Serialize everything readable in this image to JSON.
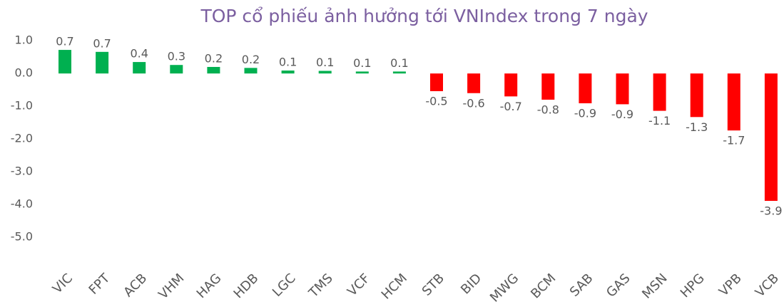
{
  "chart_data": {
    "type": "bar",
    "title": "TOP cổ phiếu ảnh hưởng tới VNIndex trong 7 ngày",
    "categories": [
      "VIC",
      "FPT",
      "ACB",
      "VHM",
      "HAG",
      "HDB",
      "LGC",
      "TMS",
      "VCF",
      "HCM",
      "STB",
      "BID",
      "MWG",
      "BCM",
      "SAB",
      "GAS",
      "MSN",
      "HPG",
      "VPB",
      "VCB"
    ],
    "values": [
      0.72,
      0.66,
      0.35,
      0.26,
      0.2,
      0.17,
      0.09,
      0.08,
      0.06,
      0.06,
      -0.54,
      -0.6,
      -0.7,
      -0.8,
      -0.91,
      -0.94,
      -1.14,
      -1.33,
      -1.74,
      -3.89
    ],
    "value_labels": [
      "0.7",
      "0.7",
      "0.4",
      "0.3",
      "0.2",
      "0.2",
      "0.1",
      "0.1",
      "0.1",
      "0.1",
      "-0.5",
      "-0.6",
      "-0.7",
      "-0.8",
      "-0.9",
      "-0.9",
      "-1.1",
      "-1.3",
      "-1.7",
      "-3.9"
    ],
    "positive_color": "#00b050",
    "negative_color": "#ff0000",
    "ylim": [
      -6,
      1.2
    ],
    "yticks": [
      {
        "value": 1,
        "label": "1.0"
      },
      {
        "value": 0,
        "label": "0.0"
      },
      {
        "value": -1,
        "label": "-1.0"
      },
      {
        "value": -2,
        "label": "-2.0"
      },
      {
        "value": -3,
        "label": "-3.0"
      },
      {
        "value": -4,
        "label": "-4.0"
      },
      {
        "value": -5,
        "label": "-5.0"
      }
    ],
    "grid": false
  }
}
